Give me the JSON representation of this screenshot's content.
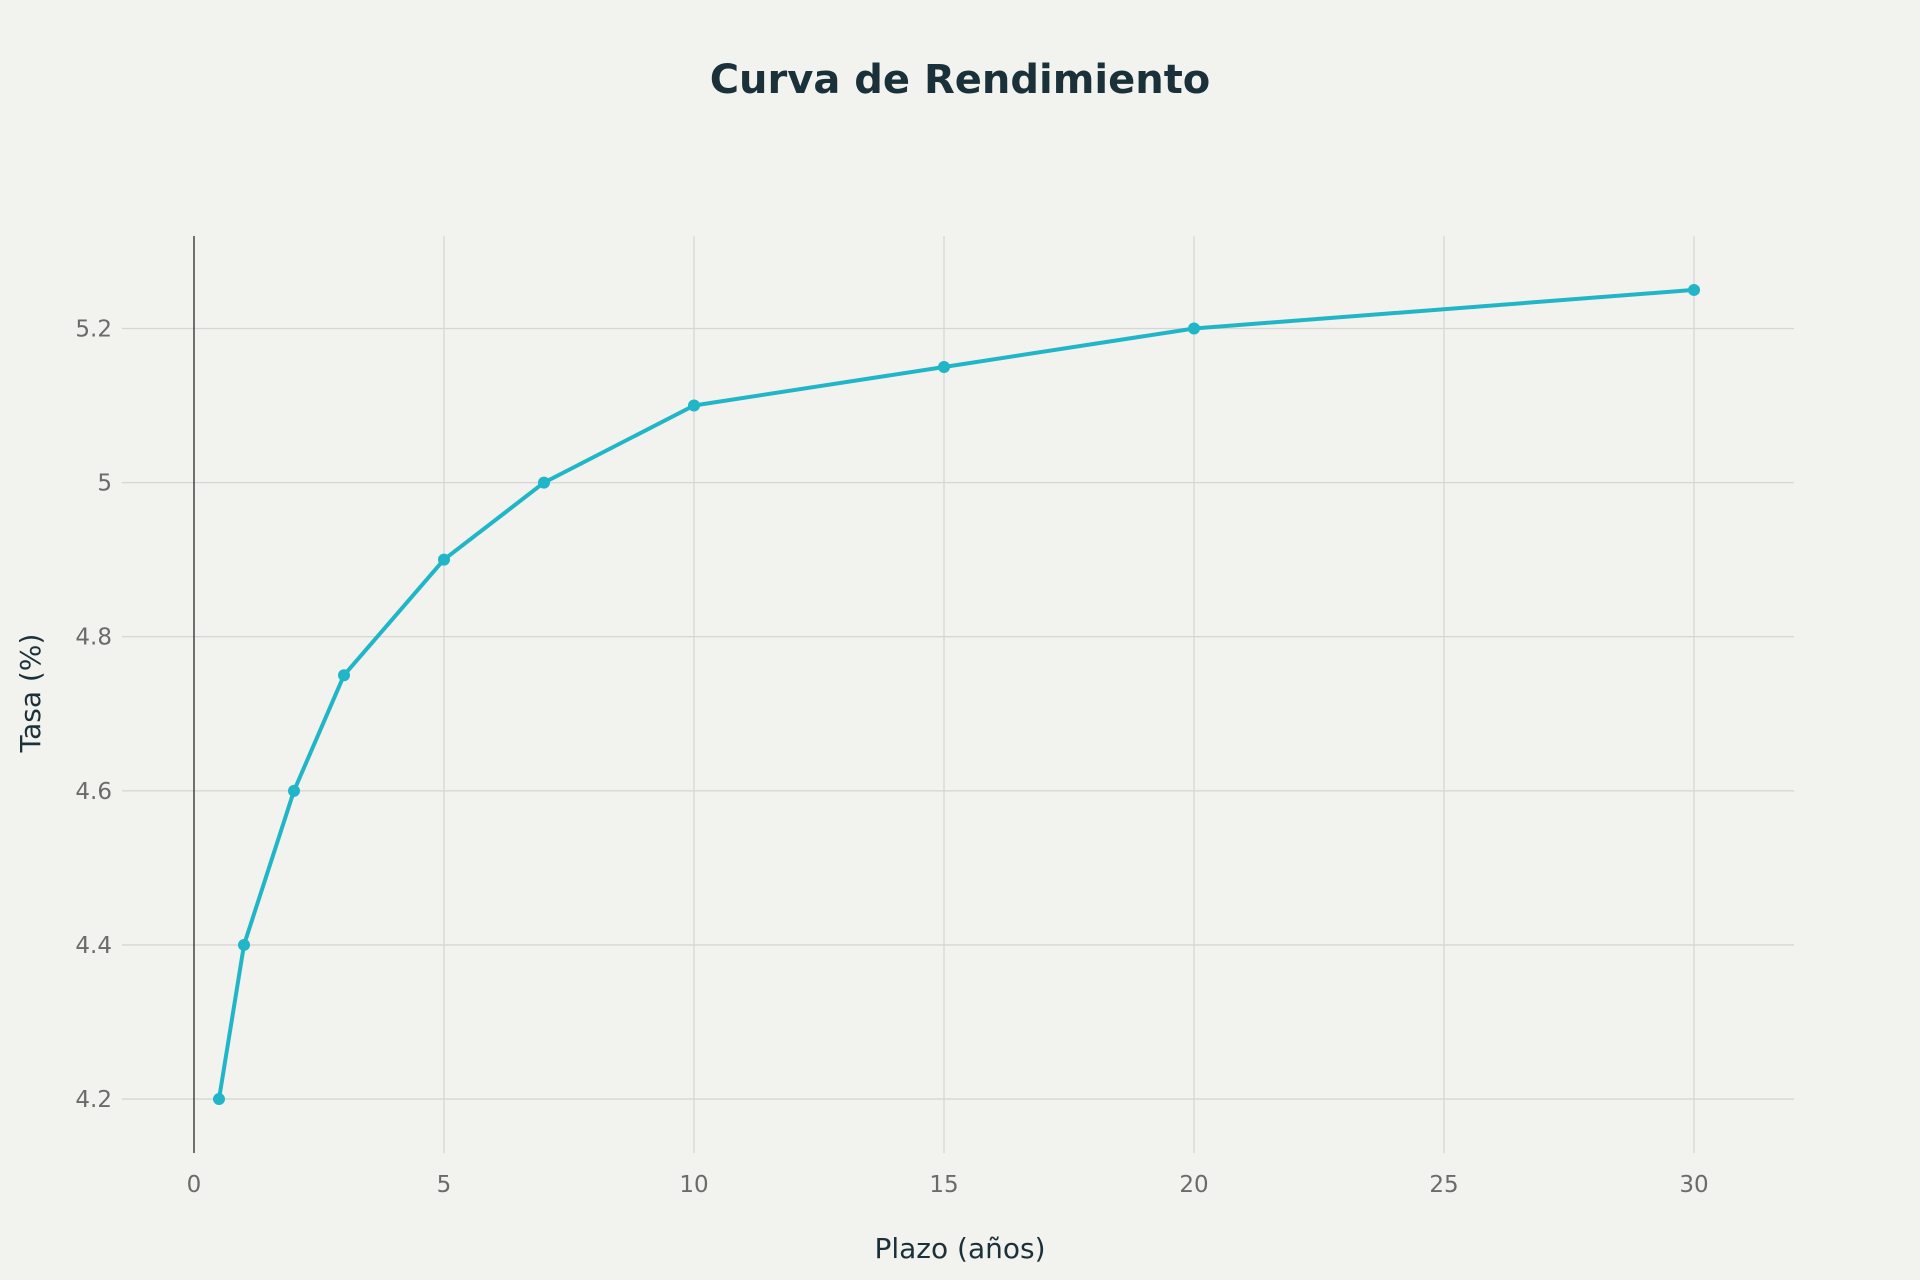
{
  "chart_data": {
    "type": "line",
    "title": "Curva de Rendimiento",
    "xlabel": "Plazo (años)",
    "ylabel": "Tasa (%)",
    "xlim": [
      0,
      32
    ],
    "ylim": [
      4.13,
      5.32
    ],
    "xticks": [
      0,
      5,
      10,
      15,
      20,
      25,
      30
    ],
    "yticks": [
      4.2,
      4.4,
      4.6,
      4.8,
      5,
      5.2
    ],
    "grid": true,
    "legend": "none",
    "series": [
      {
        "color": "#21b5c8",
        "x": [
          0.5,
          1,
          2,
          3,
          5,
          7,
          10,
          15,
          20,
          30
        ],
        "y": [
          4.2,
          4.4,
          4.6,
          4.75,
          4.9,
          5.0,
          5.1,
          5.15,
          5.2,
          5.25
        ]
      }
    ]
  }
}
